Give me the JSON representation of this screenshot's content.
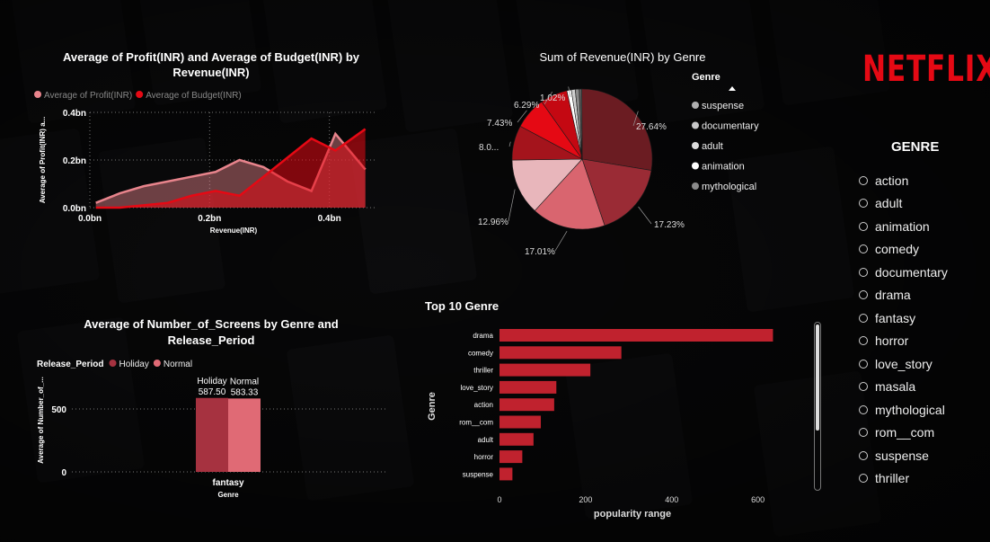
{
  "brand": {
    "logo_text": "NETFLIX",
    "logo_color": "#e50914"
  },
  "slicer": {
    "title": "GENRE",
    "items": [
      "action",
      "adult",
      "animation",
      "comedy",
      "documentary",
      "drama",
      "fantasy",
      "horror",
      "love_story",
      "masala",
      "mythological",
      "rom__com",
      "suspense",
      "thriller"
    ]
  },
  "chart_data": [
    {
      "type": "area",
      "title": "Average of Profit(INR) and Average of Budget(INR) by Revenue(INR)",
      "xlabel": "Revenue(INR)",
      "ylabel": "Average of Profit(INR) a...",
      "x_ticks": [
        "0.0bn",
        "0.2bn",
        "0.4bn"
      ],
      "y_ticks": [
        "0.0bn",
        "0.2bn",
        "0.4bn"
      ],
      "xlim": [
        0,
        0.48
      ],
      "ylim": [
        0,
        0.4
      ],
      "grid": true,
      "legend": "top-left",
      "series": [
        {
          "name": "Average of Profit(INR)",
          "color": "#e8848c",
          "x": [
            0.01,
            0.05,
            0.09,
            0.13,
            0.17,
            0.21,
            0.25,
            0.29,
            0.33,
            0.37,
            0.41,
            0.46
          ],
          "y": [
            0.02,
            0.06,
            0.09,
            0.11,
            0.13,
            0.15,
            0.2,
            0.17,
            0.11,
            0.07,
            0.31,
            0.16
          ]
        },
        {
          "name": "Average of Budget(INR)",
          "color": "#e50914",
          "x": [
            0.01,
            0.05,
            0.09,
            0.13,
            0.17,
            0.21,
            0.25,
            0.29,
            0.33,
            0.37,
            0.41,
            0.46
          ],
          "y": [
            0.0,
            0.0,
            0.01,
            0.02,
            0.05,
            0.07,
            0.05,
            0.13,
            0.21,
            0.29,
            0.24,
            0.33
          ]
        }
      ]
    },
    {
      "type": "pie",
      "title": "Sum of Revenue(INR) by Genre",
      "legend_title": "Genre",
      "legend": [
        "suspense",
        "documentary",
        "adult",
        "animation",
        "mythological"
      ],
      "legend_colors": [
        "#b0b0b0",
        "#c8c8c8",
        "#dcdcdc",
        "#ffffff",
        "#8a8a8a"
      ],
      "slices": [
        {
          "label": "27.64%",
          "value": 27.64,
          "color": "#6b1c22"
        },
        {
          "label": "17.23%",
          "value": 17.23,
          "color": "#9a2b35"
        },
        {
          "label": "17.01%",
          "value": 17.01,
          "color": "#d9656f"
        },
        {
          "label": "12.96%",
          "value": 12.96,
          "color": "#e8b6bb"
        },
        {
          "label": "8.0...",
          "value": 8.0,
          "color": "#a4141c"
        },
        {
          "label": "7.43%",
          "value": 7.43,
          "color": "#e50914"
        },
        {
          "label": "6.29%",
          "value": 6.29,
          "color": "#c40812"
        },
        {
          "label": "1.02%",
          "value": 1.02,
          "color": "#ffffff"
        },
        {
          "label": "",
          "value": 0.9,
          "color": "#cfcfcf"
        },
        {
          "label": "",
          "value": 0.9,
          "color": "#8a8a8a"
        },
        {
          "label": "",
          "value": 0.6,
          "color": "#5a5a5a"
        }
      ]
    },
    {
      "type": "bar",
      "title": "Average of Number_of_Screens by Genre and Release_Period",
      "legend_title": "Release_Period",
      "legend_position": "top-left",
      "categories": [
        "fantasy"
      ],
      "xlabel": "Genre",
      "ylabel": "Average of Number_of_...",
      "y_ticks": [
        "0",
        "500"
      ],
      "ylim": [
        0,
        750
      ],
      "series": [
        {
          "name": "Holiday",
          "color": "#a63240",
          "values": [
            587.5
          ],
          "value_labels": [
            "587.50"
          ]
        },
        {
          "name": "Normal",
          "color": "#e06a75",
          "values": [
            583.33
          ],
          "value_labels": [
            "583.33"
          ]
        }
      ]
    },
    {
      "type": "bar",
      "orientation": "horizontal",
      "title": "Top 10 Genre",
      "xlabel": "popularity range",
      "ylabel": "Genre",
      "x_ticks": [
        "0",
        "200",
        "400",
        "600"
      ],
      "xlim": [
        0,
        680
      ],
      "color": "#c0222e",
      "categories": [
        "drama",
        "comedy",
        "thriller",
        "love_story",
        "action",
        "rom__com",
        "adult",
        "horror",
        "suspense"
      ],
      "values": [
        635,
        283,
        211,
        132,
        127,
        96,
        79,
        53,
        30
      ]
    }
  ]
}
